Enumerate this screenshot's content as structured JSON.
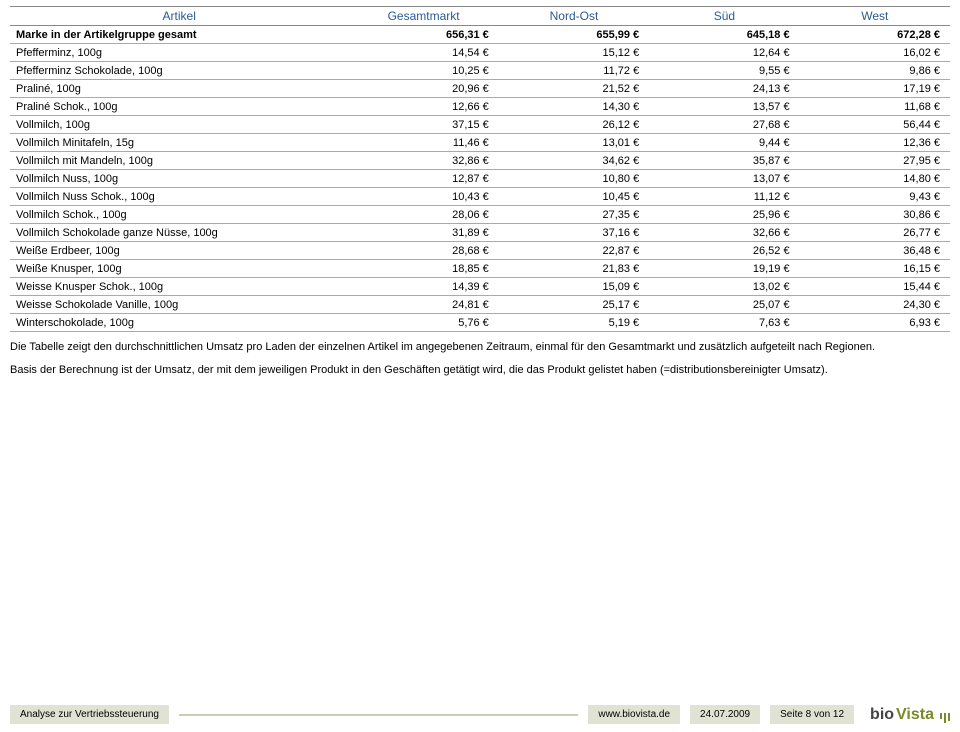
{
  "table": {
    "columns": [
      "Artikel",
      "Gesamtmarkt",
      "Nord-Ost",
      "Süd",
      "West"
    ],
    "total_row": {
      "label": "Marke in der Artikelgruppe gesamt",
      "values": [
        "656,31 €",
        "655,99 €",
        "645,18 €",
        "672,28 €"
      ]
    },
    "rows": [
      {
        "label": "Pfefferminz, 100g",
        "values": [
          "14,54 €",
          "15,12 €",
          "12,64 €",
          "16,02 €"
        ]
      },
      {
        "label": "Pfefferminz Schokolade, 100g",
        "values": [
          "10,25 €",
          "11,72 €",
          "9,55 €",
          "9,86 €"
        ]
      },
      {
        "label": "Praliné, 100g",
        "values": [
          "20,96 €",
          "21,52 €",
          "24,13 €",
          "17,19 €"
        ]
      },
      {
        "label": "Praliné Schok., 100g",
        "values": [
          "12,66 €",
          "14,30 €",
          "13,57 €",
          "11,68 €"
        ]
      },
      {
        "label": "Vollmilch, 100g",
        "values": [
          "37,15 €",
          "26,12 €",
          "27,68 €",
          "56,44 €"
        ]
      },
      {
        "label": "Vollmilch Minitafeln, 15g",
        "values": [
          "11,46 €",
          "13,01 €",
          "9,44 €",
          "12,36 €"
        ]
      },
      {
        "label": "Vollmilch mit Mandeln, 100g",
        "values": [
          "32,86 €",
          "34,62 €",
          "35,87 €",
          "27,95 €"
        ]
      },
      {
        "label": "Vollmilch Nuss, 100g",
        "values": [
          "12,87 €",
          "10,80 €",
          "13,07 €",
          "14,80 €"
        ]
      },
      {
        "label": "Vollmilch Nuss Schok., 100g",
        "values": [
          "10,43 €",
          "10,45 €",
          "11,12 €",
          "9,43 €"
        ]
      },
      {
        "label": "Vollmilch Schok., 100g",
        "values": [
          "28,06 €",
          "27,35 €",
          "25,96 €",
          "30,86 €"
        ]
      },
      {
        "label": "Vollmilch Schokolade ganze Nüsse, 100g",
        "values": [
          "31,89 €",
          "37,16 €",
          "32,66 €",
          "26,77 €"
        ]
      },
      {
        "label": "Weiße Erdbeer, 100g",
        "values": [
          "28,68 €",
          "22,87 €",
          "26,52 €",
          "36,48 €"
        ]
      },
      {
        "label": "Weiße Knusper, 100g",
        "values": [
          "18,85 €",
          "21,83 €",
          "19,19 €",
          "16,15 €"
        ]
      },
      {
        "label": "Weisse Knusper Schok., 100g",
        "values": [
          "14,39 €",
          "15,09 €",
          "13,02 €",
          "15,44 €"
        ]
      },
      {
        "label": "Weisse Schokolade Vanille, 100g",
        "values": [
          "24,81 €",
          "25,17 €",
          "25,07 €",
          "24,30 €"
        ]
      },
      {
        "label": "Winterschokolade, 100g",
        "values": [
          "5,76 €",
          "5,19 €",
          "7,63 €",
          "6,93 €"
        ]
      }
    ]
  },
  "notes": {
    "p1": "Die Tabelle zeigt den durchschnittlichen Umsatz pro Laden der einzelnen Artikel im angegebenen Zeitraum, einmal für den Gesamtmarkt und zusätzlich aufgeteilt nach Regionen.",
    "p2": "Basis der Berechnung ist der Umsatz, der mit dem jeweiligen Produkt in den Geschäften getätigt wird, die das Produkt gelistet haben (=distributionsbereinigter Umsatz)."
  },
  "footer": {
    "title": "Analyse zur Vertriebssteuerung",
    "url": "www.biovista.de",
    "date": "24.07.2009",
    "page": "Seite 8 von 12",
    "logo_bio": "bio",
    "logo_vista": "Vista"
  },
  "style": {
    "header_color": "#2a5a97",
    "row_border": "#aaaaaa",
    "chip_bg": "#e0e3d3",
    "accent": "#7a8a2a"
  }
}
